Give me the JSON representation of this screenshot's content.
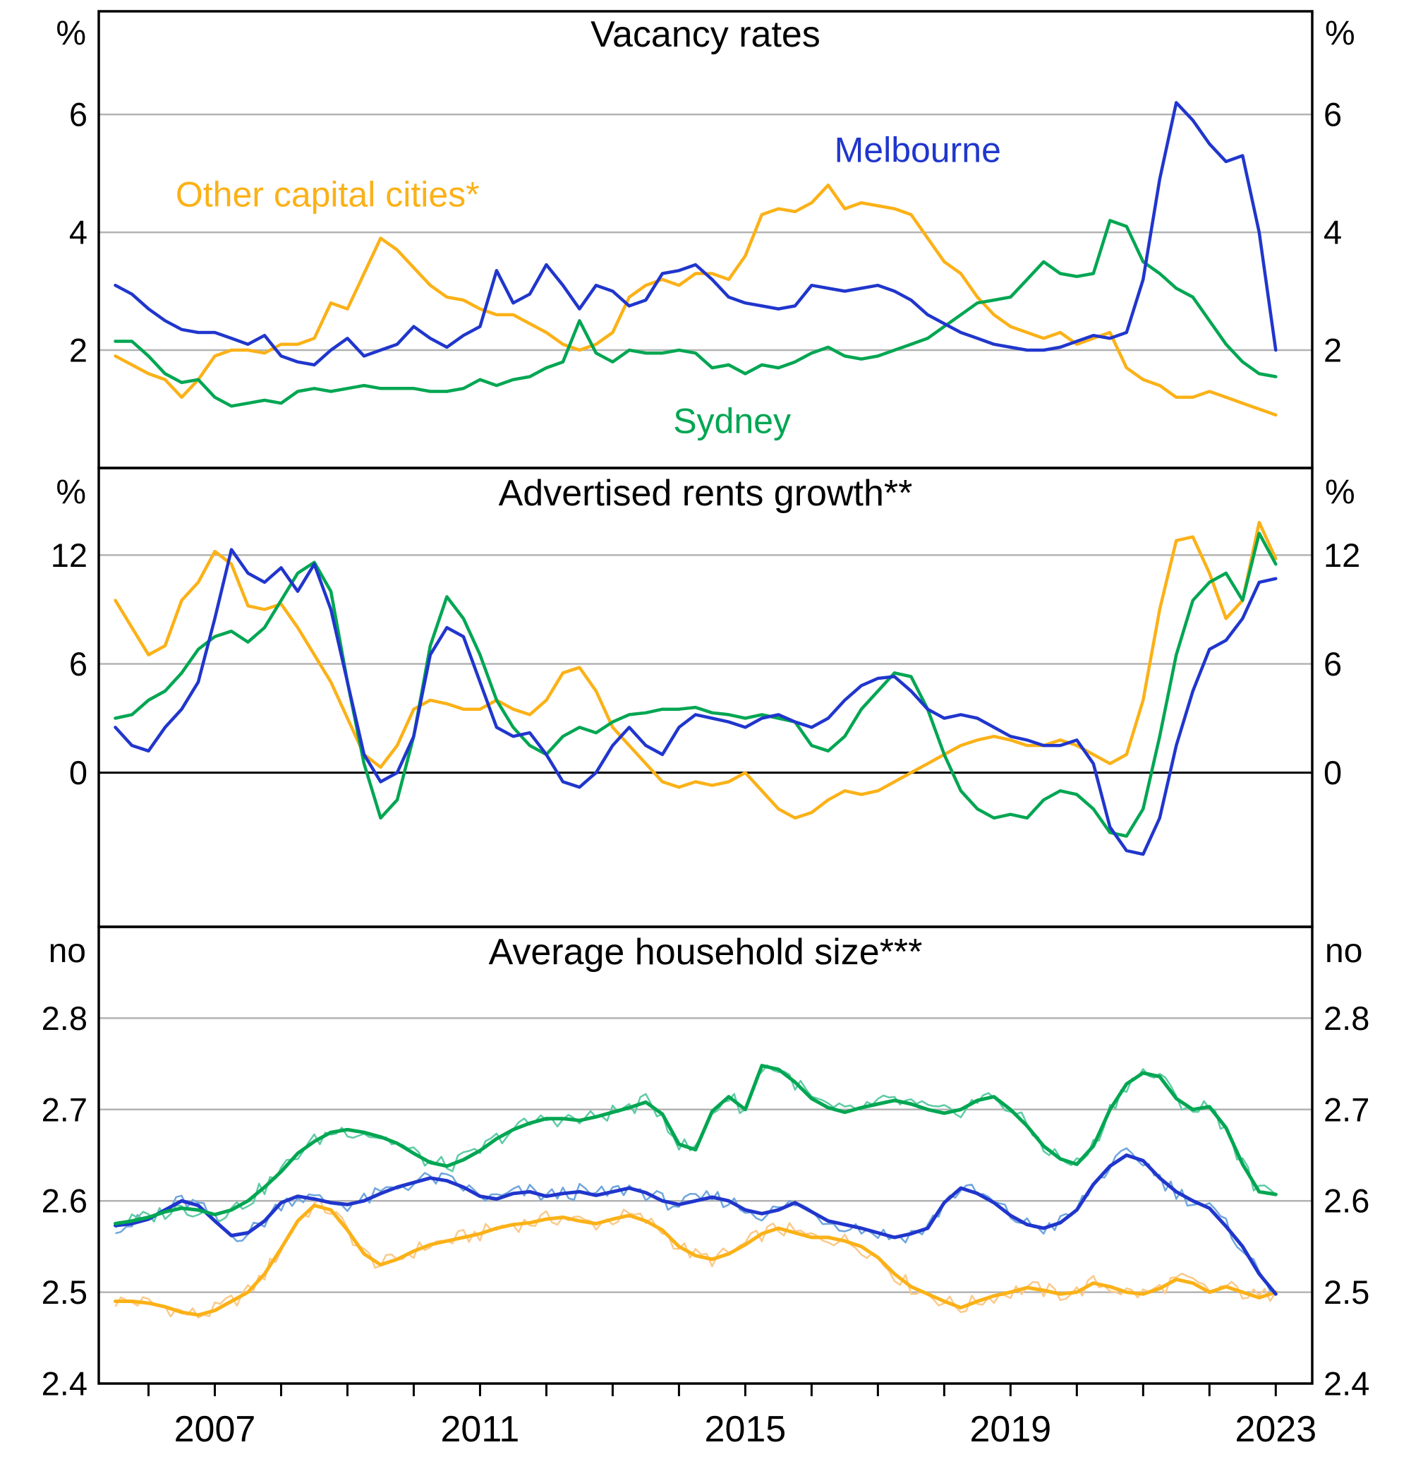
{
  "colors": {
    "melbourne": "#2036cc",
    "sydney": "#00a652",
    "other": "#fbb117",
    "melbourne_light": "#6fa6dc",
    "sydney_light": "#5ecba4",
    "other_light": "#fbc98a",
    "grid": "#b3b3b3",
    "axis": "#000000"
  },
  "x_axis": {
    "start": 2005.25,
    "end": 2023.55,
    "tick_years": [
      2006,
      2007,
      2008,
      2009,
      2010,
      2011,
      2012,
      2013,
      2014,
      2015,
      2016,
      2017,
      2018,
      2019,
      2020,
      2021,
      2022,
      2023
    ],
    "year_labels": [
      {
        "text": "2007",
        "value": 2007
      },
      {
        "text": "2011",
        "value": 2011
      },
      {
        "text": "2015",
        "value": 2015
      },
      {
        "text": "2019",
        "value": 2019
      },
      {
        "text": "2023",
        "value": 2023
      }
    ]
  },
  "chart_data": [
    {
      "type": "line",
      "title": "Vacancy rates",
      "unit_left": "%",
      "unit_right": "%",
      "ylim": [
        0,
        7.75
      ],
      "yticks": [
        2,
        4,
        6
      ],
      "tick_labels": [
        {
          "text": "2",
          "value": 2
        },
        {
          "text": "4",
          "value": 4
        },
        {
          "text": "6",
          "value": 6
        }
      ],
      "annotations": [
        {
          "text": "Other capital cities*",
          "color_key": "other",
          "x": 2008.7,
          "y": 4.65
        },
        {
          "text": "Melbourne",
          "color_key": "melbourne",
          "x": 2017.6,
          "y": 5.4
        },
        {
          "text": "Sydney",
          "color_key": "sydney",
          "x": 2014.8,
          "y": 0.8
        }
      ],
      "series": [
        {
          "name": "Other capital cities*",
          "color_key": "other",
          "x0": 2005.5,
          "dx": 0.25,
          "values": [
            1.9,
            1.75,
            1.6,
            1.5,
            1.2,
            1.5,
            1.9,
            2.0,
            2.0,
            1.95,
            2.1,
            2.1,
            2.2,
            2.8,
            2.7,
            3.3,
            3.9,
            3.7,
            3.4,
            3.1,
            2.9,
            2.85,
            2.7,
            2.6,
            2.6,
            2.45,
            2.3,
            2.1,
            2.0,
            2.1,
            2.3,
            2.9,
            3.1,
            3.2,
            3.1,
            3.3,
            3.3,
            3.2,
            3.6,
            4.3,
            4.4,
            4.35,
            4.5,
            4.8,
            4.4,
            4.5,
            4.45,
            4.4,
            4.3,
            3.9,
            3.5,
            3.3,
            2.9,
            2.6,
            2.4,
            2.3,
            2.2,
            2.3,
            2.1,
            2.2,
            2.3,
            1.7,
            1.5,
            1.4,
            1.2,
            1.2,
            1.3,
            1.2,
            1.1,
            1.0,
            0.9
          ]
        },
        {
          "name": "Sydney",
          "color_key": "sydney",
          "x0": 2005.5,
          "dx": 0.25,
          "values": [
            2.15,
            2.15,
            1.9,
            1.6,
            1.45,
            1.5,
            1.2,
            1.05,
            1.1,
            1.15,
            1.1,
            1.3,
            1.35,
            1.3,
            1.35,
            1.4,
            1.35,
            1.35,
            1.35,
            1.3,
            1.3,
            1.35,
            1.5,
            1.4,
            1.5,
            1.55,
            1.7,
            1.8,
            2.5,
            1.95,
            1.8,
            2.0,
            1.95,
            1.95,
            2.0,
            1.95,
            1.7,
            1.75,
            1.6,
            1.75,
            1.7,
            1.8,
            1.95,
            2.05,
            1.9,
            1.85,
            1.9,
            2.0,
            2.1,
            2.2,
            2.4,
            2.6,
            2.8,
            2.85,
            2.9,
            3.2,
            3.5,
            3.3,
            3.25,
            3.3,
            4.2,
            4.1,
            3.5,
            3.3,
            3.05,
            2.9,
            2.5,
            2.1,
            1.8,
            1.6,
            1.55
          ]
        },
        {
          "name": "Melbourne",
          "color_key": "melbourne",
          "x0": 2005.5,
          "dx": 0.25,
          "values": [
            3.1,
            2.95,
            2.7,
            2.5,
            2.35,
            2.3,
            2.3,
            2.2,
            2.1,
            2.25,
            1.9,
            1.8,
            1.75,
            2.0,
            2.2,
            1.9,
            2.0,
            2.1,
            2.4,
            2.2,
            2.05,
            2.25,
            2.4,
            3.35,
            2.8,
            2.95,
            3.45,
            3.1,
            2.7,
            3.1,
            3.0,
            2.75,
            2.85,
            3.3,
            3.35,
            3.45,
            3.2,
            2.9,
            2.8,
            2.75,
            2.7,
            2.75,
            3.1,
            3.05,
            3.0,
            3.05,
            3.1,
            3.0,
            2.85,
            2.6,
            2.45,
            2.3,
            2.2,
            2.1,
            2.05,
            2.0,
            2.0,
            2.05,
            2.15,
            2.25,
            2.2,
            2.3,
            3.2,
            4.9,
            6.2,
            5.9,
            5.5,
            5.2,
            5.3,
            4.0,
            2.0
          ]
        }
      ]
    },
    {
      "type": "line",
      "title": "Advertised rents growth**",
      "unit_left": "%",
      "unit_right": "%",
      "ylim": [
        -8.5,
        16.8
      ],
      "yticks": [
        0,
        6,
        12
      ],
      "zero_line": true,
      "tick_labels": [
        {
          "text": "0",
          "value": 0
        },
        {
          "text": "6",
          "value": 6
        },
        {
          "text": "12",
          "value": 12
        }
      ],
      "annotations": [],
      "series": [
        {
          "name": "Other capital cities*",
          "color_key": "other",
          "x0": 2005.5,
          "dx": 0.25,
          "values": [
            9.5,
            8.0,
            6.5,
            7.0,
            9.5,
            10.5,
            12.2,
            11.5,
            9.2,
            9.0,
            9.3,
            8.0,
            6.5,
            5.0,
            3.0,
            1.0,
            0.3,
            1.5,
            3.5,
            4.0,
            3.8,
            3.5,
            3.5,
            4.0,
            3.5,
            3.2,
            4.0,
            5.5,
            5.8,
            4.5,
            2.5,
            1.5,
            0.5,
            -0.5,
            -0.8,
            -0.5,
            -0.7,
            -0.5,
            0.0,
            -1.0,
            -2.0,
            -2.5,
            -2.2,
            -1.5,
            -1.0,
            -1.2,
            -1.0,
            -0.5,
            0.0,
            0.5,
            1.0,
            1.5,
            1.8,
            2.0,
            1.8,
            1.5,
            1.5,
            1.8,
            1.5,
            1.0,
            0.5,
            1.0,
            4.0,
            9.0,
            12.8,
            13.0,
            11.0,
            8.5,
            9.5,
            13.8,
            11.8
          ]
        },
        {
          "name": "Sydney",
          "color_key": "sydney",
          "x0": 2005.5,
          "dx": 0.25,
          "values": [
            3.0,
            3.2,
            4.0,
            4.5,
            5.5,
            6.8,
            7.5,
            7.8,
            7.2,
            8.0,
            9.5,
            11.0,
            11.6,
            10.0,
            5.0,
            0.5,
            -2.5,
            -1.5,
            2.0,
            7.0,
            9.7,
            8.5,
            6.5,
            4.0,
            2.5,
            1.5,
            1.0,
            2.0,
            2.5,
            2.2,
            2.8,
            3.2,
            3.3,
            3.5,
            3.5,
            3.6,
            3.3,
            3.2,
            3.0,
            3.2,
            3.0,
            2.8,
            1.5,
            1.2,
            2.0,
            3.5,
            4.5,
            5.5,
            5.3,
            3.5,
            1.0,
            -1.0,
            -2.0,
            -2.5,
            -2.3,
            -2.5,
            -1.5,
            -1.0,
            -1.2,
            -2.0,
            -3.3,
            -3.5,
            -2.0,
            2.0,
            6.5,
            9.5,
            10.5,
            11.0,
            9.5,
            13.2,
            11.5
          ]
        },
        {
          "name": "Melbourne",
          "color_key": "melbourne",
          "x0": 2005.5,
          "dx": 0.25,
          "values": [
            2.5,
            1.5,
            1.2,
            2.5,
            3.5,
            5.0,
            8.5,
            12.3,
            11.0,
            10.5,
            11.3,
            10.0,
            11.5,
            9.0,
            5.0,
            1.0,
            -0.5,
            0.0,
            2.0,
            6.5,
            8.0,
            7.5,
            5.0,
            2.5,
            2.0,
            2.2,
            1.0,
            -0.5,
            -0.8,
            0.0,
            1.5,
            2.5,
            1.5,
            1.0,
            2.5,
            3.2,
            3.0,
            2.8,
            2.5,
            3.0,
            3.2,
            2.8,
            2.5,
            3.0,
            4.0,
            4.8,
            5.2,
            5.3,
            4.5,
            3.5,
            3.0,
            3.2,
            3.0,
            2.5,
            2.0,
            1.8,
            1.5,
            1.5,
            1.8,
            0.5,
            -3.0,
            -4.3,
            -4.5,
            -2.5,
            1.5,
            4.5,
            6.8,
            7.3,
            8.5,
            10.5,
            10.7
          ]
        }
      ]
    },
    {
      "type": "line",
      "title": "Average household size***",
      "unit_left": "no",
      "unit_right": "no",
      "ylim": [
        2.4,
        2.9
      ],
      "yticks": [
        2.5,
        2.6,
        2.7,
        2.8
      ],
      "tick_labels": [
        {
          "text": "2.4",
          "value": 2.4
        },
        {
          "text": "2.5",
          "value": 2.5
        },
        {
          "text": "2.6",
          "value": 2.6
        },
        {
          "text": "2.7",
          "value": 2.7
        },
        {
          "text": "2.8",
          "value": 2.8
        }
      ],
      "annotations": [],
      "series": [
        {
          "name": "Other capital cities*",
          "color_key": "other",
          "light_color_key": "other_light",
          "noisy": true,
          "x0": 2005.5,
          "dx": 0.25,
          "values": [
            2.49,
            2.49,
            2.488,
            2.484,
            2.478,
            2.475,
            2.48,
            2.49,
            2.5,
            2.52,
            2.548,
            2.578,
            2.595,
            2.59,
            2.568,
            2.542,
            2.53,
            2.536,
            2.545,
            2.552,
            2.556,
            2.56,
            2.564,
            2.57,
            2.574,
            2.576,
            2.58,
            2.582,
            2.578,
            2.575,
            2.58,
            2.584,
            2.578,
            2.568,
            2.55,
            2.54,
            2.536,
            2.542,
            2.552,
            2.564,
            2.57,
            2.565,
            2.56,
            2.56,
            2.556,
            2.55,
            2.538,
            2.52,
            2.506,
            2.498,
            2.49,
            2.483,
            2.49,
            2.496,
            2.5,
            2.505,
            2.502,
            2.498,
            2.5,
            2.51,
            2.506,
            2.5,
            2.498,
            2.504,
            2.514,
            2.51,
            2.5,
            2.506,
            2.5,
            2.494,
            2.5
          ]
        },
        {
          "name": "Melbourne",
          "color_key": "melbourne",
          "light_color_key": "melbourne_light",
          "noisy": true,
          "x0": 2005.5,
          "dx": 0.25,
          "values": [
            2.573,
            2.575,
            2.58,
            2.59,
            2.6,
            2.595,
            2.578,
            2.562,
            2.565,
            2.578,
            2.598,
            2.605,
            2.602,
            2.598,
            2.596,
            2.6,
            2.608,
            2.615,
            2.62,
            2.625,
            2.622,
            2.615,
            2.605,
            2.602,
            2.608,
            2.61,
            2.605,
            2.608,
            2.61,
            2.606,
            2.61,
            2.614,
            2.609,
            2.6,
            2.596,
            2.6,
            2.604,
            2.6,
            2.59,
            2.586,
            2.59,
            2.598,
            2.588,
            2.578,
            2.574,
            2.57,
            2.565,
            2.56,
            2.564,
            2.57,
            2.598,
            2.614,
            2.608,
            2.598,
            2.584,
            2.574,
            2.57,
            2.576,
            2.59,
            2.618,
            2.638,
            2.65,
            2.644,
            2.625,
            2.61,
            2.6,
            2.592,
            2.572,
            2.55,
            2.52,
            2.498
          ]
        },
        {
          "name": "Sydney",
          "color_key": "sydney",
          "light_color_key": "sydney_light",
          "noisy": true,
          "x0": 2005.5,
          "dx": 0.25,
          "values": [
            2.575,
            2.578,
            2.582,
            2.588,
            2.592,
            2.59,
            2.585,
            2.59,
            2.6,
            2.615,
            2.632,
            2.652,
            2.665,
            2.675,
            2.678,
            2.675,
            2.67,
            2.663,
            2.652,
            2.642,
            2.638,
            2.645,
            2.655,
            2.668,
            2.678,
            2.685,
            2.69,
            2.69,
            2.688,
            2.692,
            2.697,
            2.702,
            2.708,
            2.695,
            2.662,
            2.656,
            2.698,
            2.714,
            2.7,
            2.748,
            2.744,
            2.73,
            2.712,
            2.702,
            2.697,
            2.702,
            2.706,
            2.71,
            2.706,
            2.7,
            2.696,
            2.7,
            2.71,
            2.714,
            2.7,
            2.682,
            2.66,
            2.646,
            2.64,
            2.66,
            2.7,
            2.728,
            2.74,
            2.736,
            2.712,
            2.7,
            2.703,
            2.68,
            2.64,
            2.61,
            2.607
          ]
        }
      ]
    }
  ]
}
